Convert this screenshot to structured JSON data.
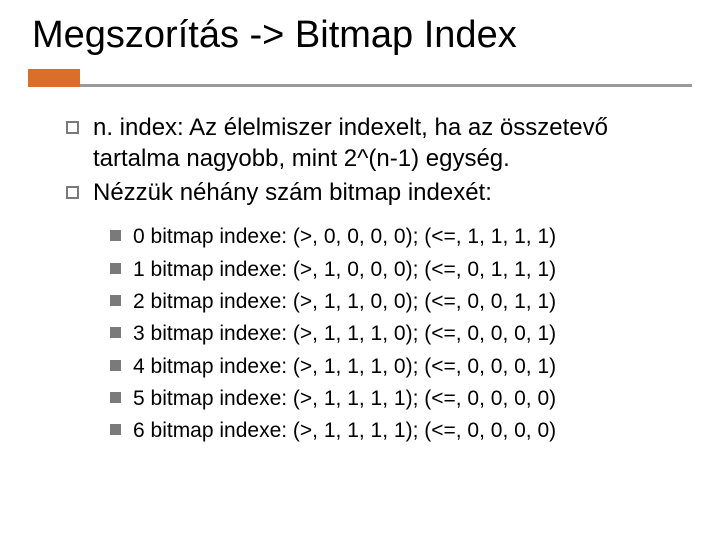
{
  "title": "Megszorítás -> Bitmap Index",
  "accent_color": "#d96f28",
  "rule_color": "#9a9a9a",
  "bullet_border_color": "#7a7a7a",
  "bullet_fill_color": "#7a7a7a",
  "text_color": "#000000",
  "background_color": "#ffffff",
  "title_fontsize": 38,
  "main_fontsize": 24,
  "sub_fontsize": 21,
  "main_items": [
    {
      "text": "n. index: Az élelmiszer indexelt, ha az összetevő tartalma nagyobb, mint 2^(n-1) egység."
    },
    {
      "text": "Nézzük néhány szám bitmap indexét:"
    }
  ],
  "sub_items": [
    {
      "text": "0 bitmap indexe: (>, 0, 0, 0, 0); (<=, 1, 1, 1, 1)"
    },
    {
      "text": "1 bitmap indexe: (>, 1, 0, 0, 0); (<=, 0, 1, 1, 1)"
    },
    {
      "text": "2 bitmap indexe: (>, 1, 1, 0, 0); (<=, 0, 0, 1, 1)"
    },
    {
      "text": "3 bitmap indexe: (>, 1, 1, 1, 0); (<=, 0, 0, 0, 1)"
    },
    {
      "text": "4 bitmap indexe: (>, 1, 1, 1, 0); (<=, 0, 0, 0, 1)"
    },
    {
      "text": "5 bitmap indexe: (>, 1, 1, 1, 1); (<=, 0, 0, 0, 0)"
    },
    {
      "text": "6 bitmap indexe: (>, 1, 1, 1, 1); (<=, 0, 0, 0, 0)"
    }
  ]
}
